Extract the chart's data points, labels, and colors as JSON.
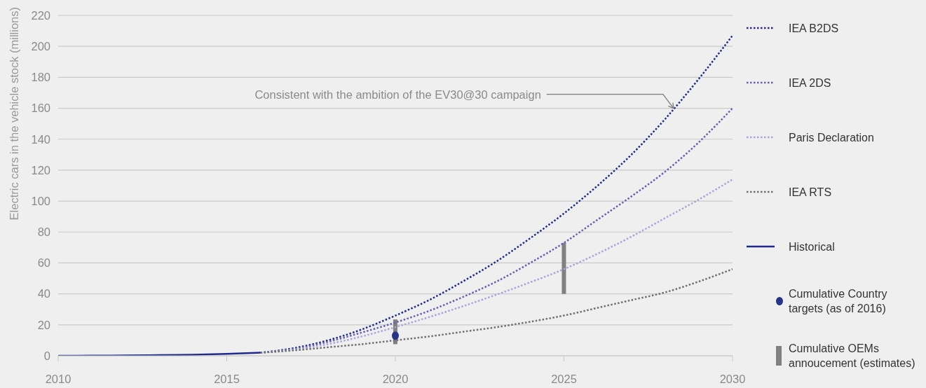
{
  "chart_data": {
    "type": "line",
    "ylabel": "Electric cars in the vehicle stock (millions)",
    "xlim": [
      2010,
      2030
    ],
    "xticks": [
      2010,
      2015,
      2020,
      2025,
      2030
    ],
    "ylim": [
      0,
      220
    ],
    "yticks": [
      0,
      20,
      40,
      60,
      80,
      100,
      120,
      140,
      160,
      180,
      200,
      220
    ],
    "grid": "y",
    "legend": "right",
    "annotations": [
      {
        "text": "Consistent with the ambition of the EV30@30 campaign",
        "x": 2028.25,
        "y": 160
      }
    ],
    "series": [
      {
        "name": "IEA B2DS",
        "color": "#1f2a8c",
        "line_style": "dotted",
        "x": [
          2016,
          2017,
          2018,
          2019,
          2020,
          2021,
          2022,
          2023,
          2024,
          2025,
          2026,
          2027,
          2028,
          2029,
          2030
        ],
        "values": [
          2,
          5,
          10,
          17,
          26,
          36,
          48,
          61,
          76,
          92,
          110,
          130,
          153,
          179,
          207
        ]
      },
      {
        "name": "IEA 2DS",
        "color": "#6560b0",
        "line_style": "dotted",
        "x": [
          2016,
          2017,
          2018,
          2019,
          2020,
          2021,
          2022,
          2023,
          2024,
          2025,
          2026,
          2027,
          2028,
          2029,
          2030
        ],
        "values": [
          2,
          4.5,
          9,
          15,
          21.5,
          29,
          38,
          48,
          60,
          73,
          88,
          103,
          119,
          138,
          160
        ]
      },
      {
        "name": "Paris Declaration",
        "color": "#aaa5d8",
        "line_style": "dotted",
        "x": [
          2016,
          2017,
          2018,
          2019,
          2020,
          2021,
          2022,
          2023,
          2024,
          2025,
          2026,
          2027,
          2028,
          2029,
          2030
        ],
        "values": [
          2,
          4,
          7.5,
          12.5,
          18.5,
          25,
          32,
          39.5,
          47.5,
          56,
          66,
          77,
          89,
          101,
          114
        ]
      },
      {
        "name": "IEA RTS",
        "color": "#707070",
        "line_style": "dotted",
        "x": [
          2016,
          2017,
          2018,
          2019,
          2020,
          2021,
          2022,
          2023,
          2024,
          2025,
          2026,
          2027,
          2028,
          2029,
          2030
        ],
        "values": [
          2,
          3.5,
          5.5,
          7.5,
          10,
          12.5,
          15.5,
          18.5,
          22,
          26,
          31,
          36,
          41,
          48,
          56
        ]
      },
      {
        "name": "Historical",
        "color": "#1f2a8c",
        "line_style": "solid",
        "x": [
          2010,
          2011,
          2012,
          2013,
          2014,
          2015,
          2016
        ],
        "values": [
          0,
          0.1,
          0.2,
          0.4,
          0.7,
          1.2,
          2
        ]
      },
      {
        "name": "Cumulative Country targets (as of 2016)",
        "type": "scatter",
        "color": "#253388",
        "marker": "circle",
        "x": [
          2020
        ],
        "values": [
          13
        ]
      },
      {
        "name": "Cumulative OEMs annoucement (estimates)",
        "type": "bar",
        "color": "#808080",
        "x": [
          2020,
          2025
        ],
        "values": [
          16,
          33
        ],
        "base": [
          7.5,
          40
        ]
      }
    ]
  }
}
